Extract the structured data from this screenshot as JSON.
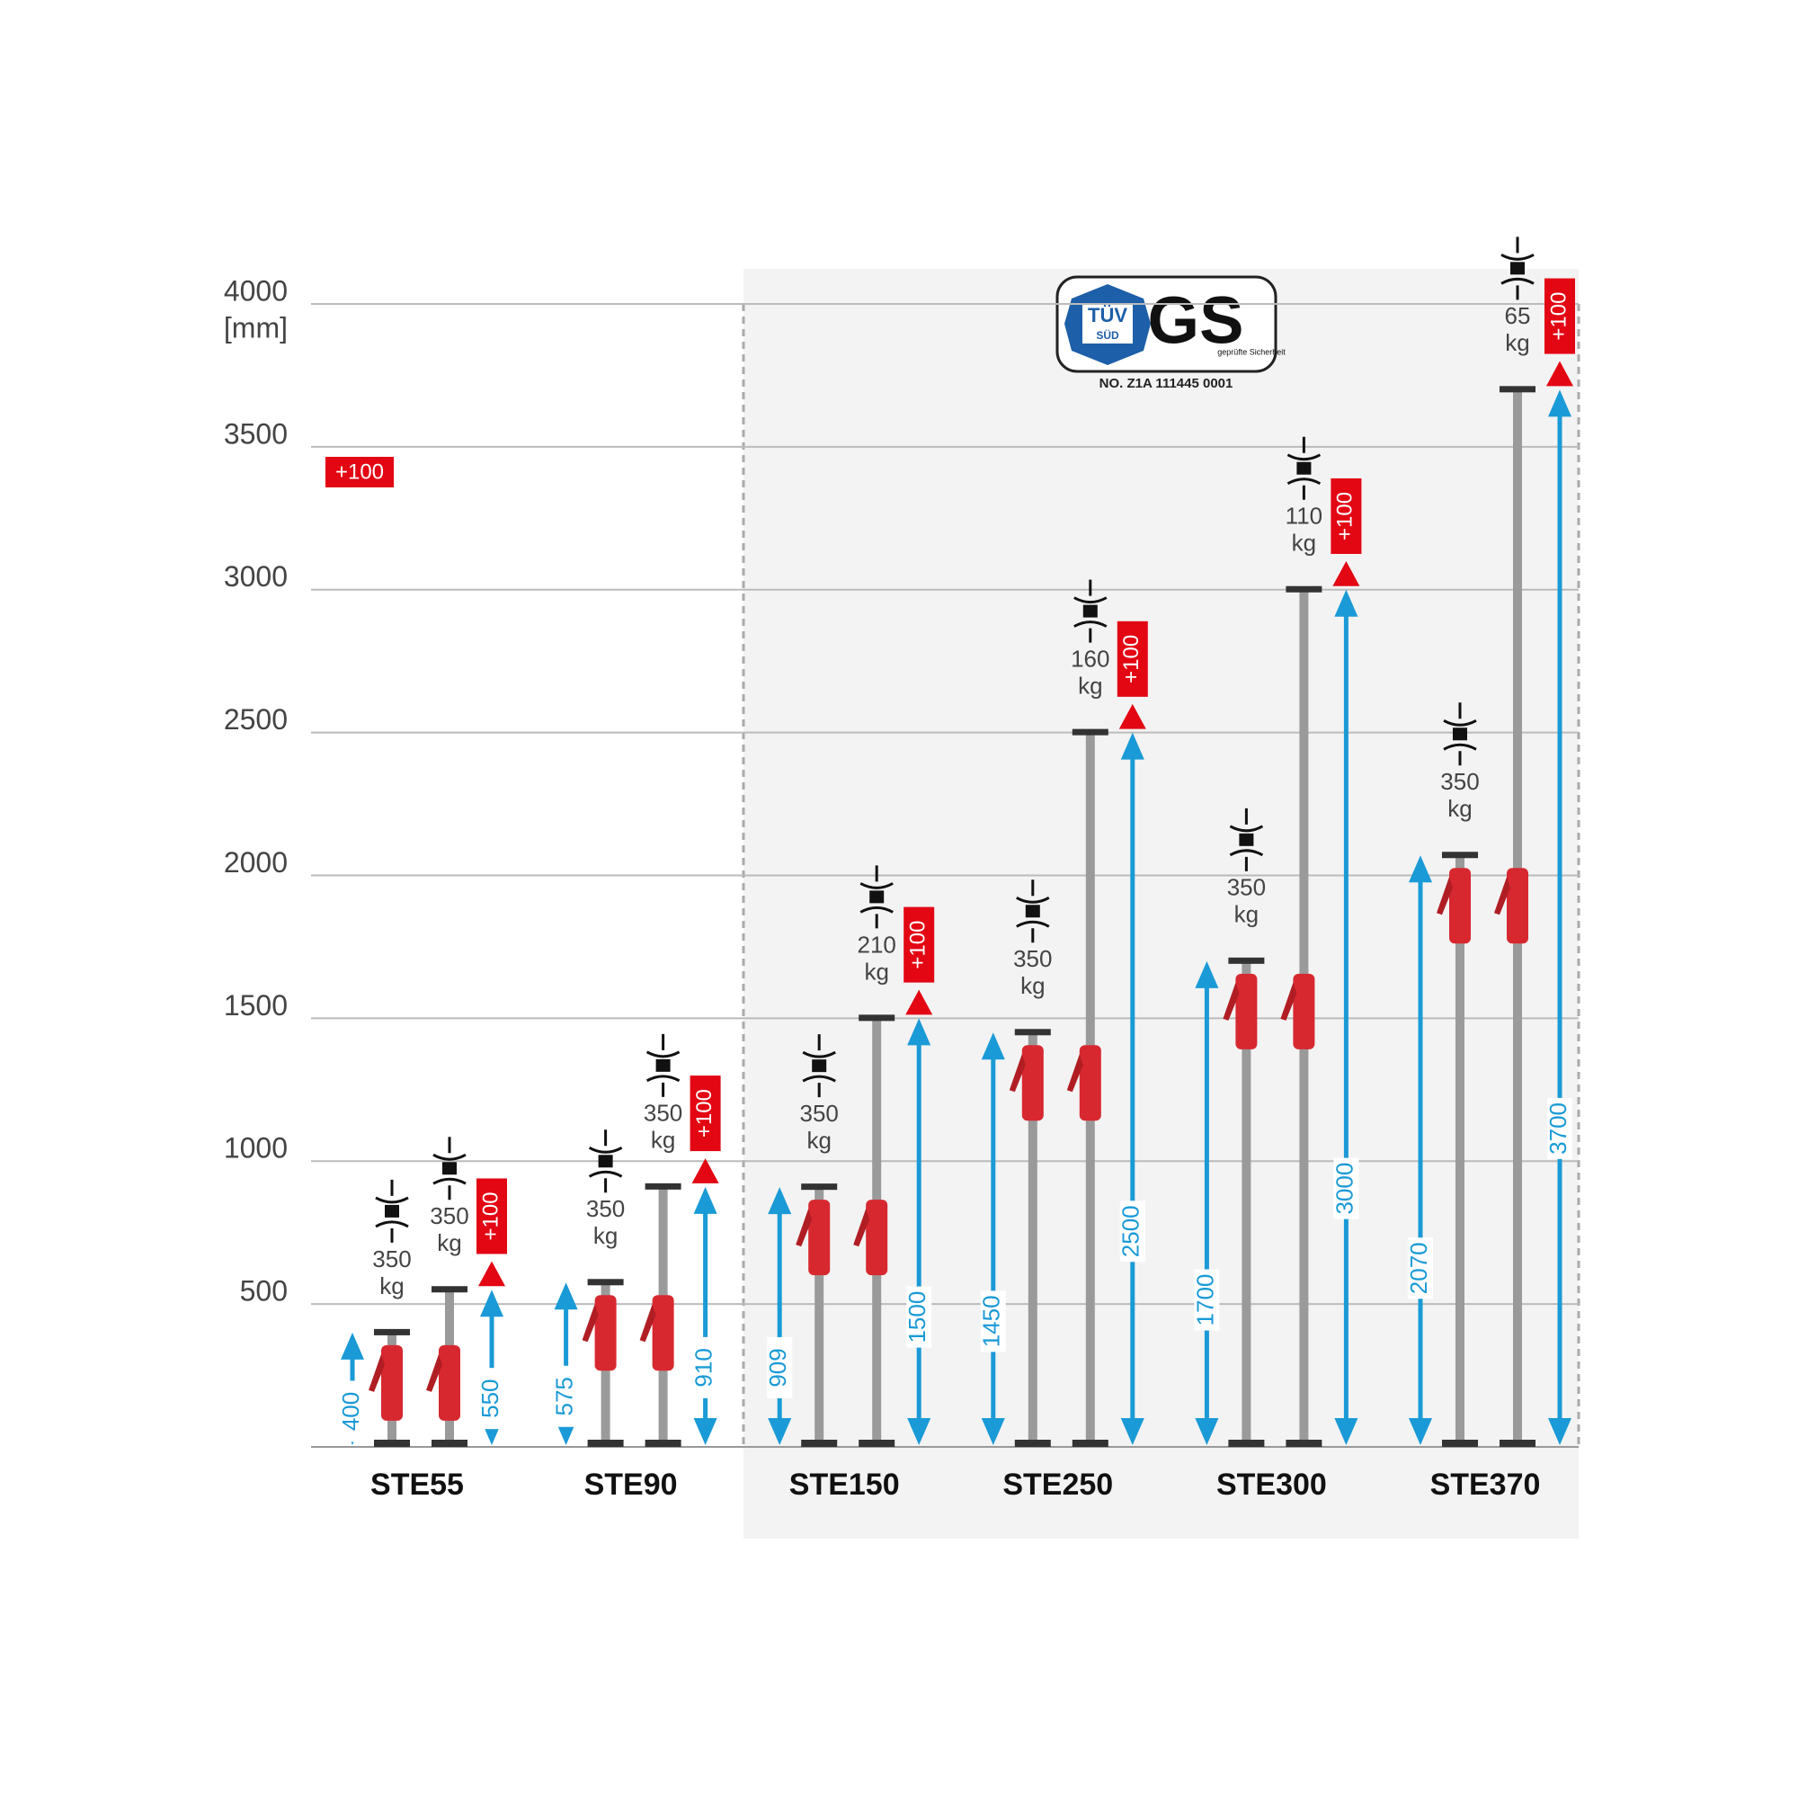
{
  "chart_data": {
    "type": "prop-range",
    "y_unit": "[mm]",
    "categories": [
      "STE55",
      "STE90",
      "STE150",
      "STE250",
      "STE300",
      "STE370"
    ],
    "min_lengths": [
      400,
      575,
      909,
      1450,
      1700,
      2070
    ],
    "max_lengths": [
      550,
      910,
      1500,
      2500,
      3000,
      3700
    ],
    "min_loads": [
      350,
      350,
      350,
      350,
      350,
      350
    ],
    "max_loads": [
      350,
      350,
      210,
      160,
      110,
      65
    ],
    "load_unit": "kg",
    "extension": {
      "value": 100,
      "label": "+100"
    },
    "ylim": [
      0,
      4000
    ],
    "yticks": [
      500,
      1000,
      1500,
      2000,
      2500,
      3000,
      3500,
      4000
    ],
    "grid": true,
    "arrow_color": "#1a9ad6",
    "extension_color": "#e30613",
    "certification": {
      "tuv": "TÜV",
      "tuv_sub": "SÜD",
      "gs": "GS",
      "gs_sub": "geprüfte Sicherheit",
      "number": "NO. Z1A 111445 0001"
    }
  }
}
